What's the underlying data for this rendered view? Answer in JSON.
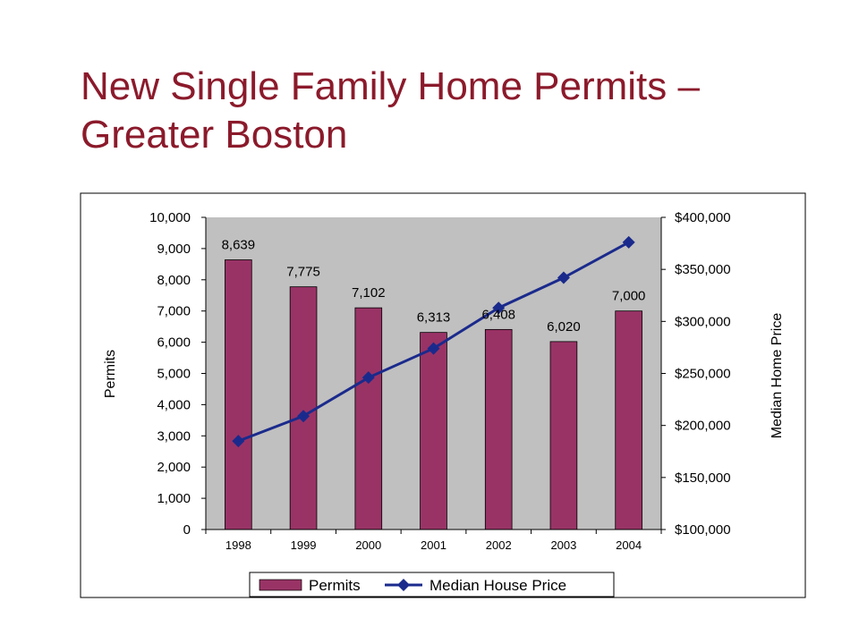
{
  "slide": {
    "title_line1": "New Single Family Home Permits –",
    "title_line2": "Greater Boston",
    "title_color": "#8b1a2b"
  },
  "chart_data": {
    "type": "bar",
    "categories": [
      "1998",
      "1999",
      "2000",
      "2001",
      "2002",
      "2003",
      "2004"
    ],
    "series": [
      {
        "name": "Permits",
        "kind": "bar",
        "axis": "left",
        "color": "#993366",
        "values": [
          8639,
          7775,
          7102,
          6313,
          6408,
          6020,
          7000
        ],
        "labels": [
          "8,639",
          "7,775",
          "7,102",
          "6,313",
          "6,408",
          "6,020",
          "7,000"
        ]
      },
      {
        "name": "Median House Price",
        "kind": "line",
        "axis": "right",
        "color": "#1a2a8c",
        "marker": "diamond",
        "values": [
          185000,
          209000,
          246000,
          274000,
          313000,
          342000,
          376000
        ]
      }
    ],
    "title": "",
    "ylabel": "Permits",
    "y2label": "Median Home Price",
    "ylim": [
      0,
      10000
    ],
    "yticks": [
      "0",
      "1,000",
      "2,000",
      "3,000",
      "4,000",
      "5,000",
      "6,000",
      "7,000",
      "8,000",
      "9,000",
      "10,000"
    ],
    "y2lim": [
      100000,
      400000
    ],
    "y2ticks": [
      "$100,000",
      "$150,000",
      "$200,000",
      "$250,000",
      "$300,000",
      "$350,000",
      "$400,000"
    ],
    "plot_background": "#c0c0c0",
    "grid": false,
    "legend": "bottom"
  }
}
